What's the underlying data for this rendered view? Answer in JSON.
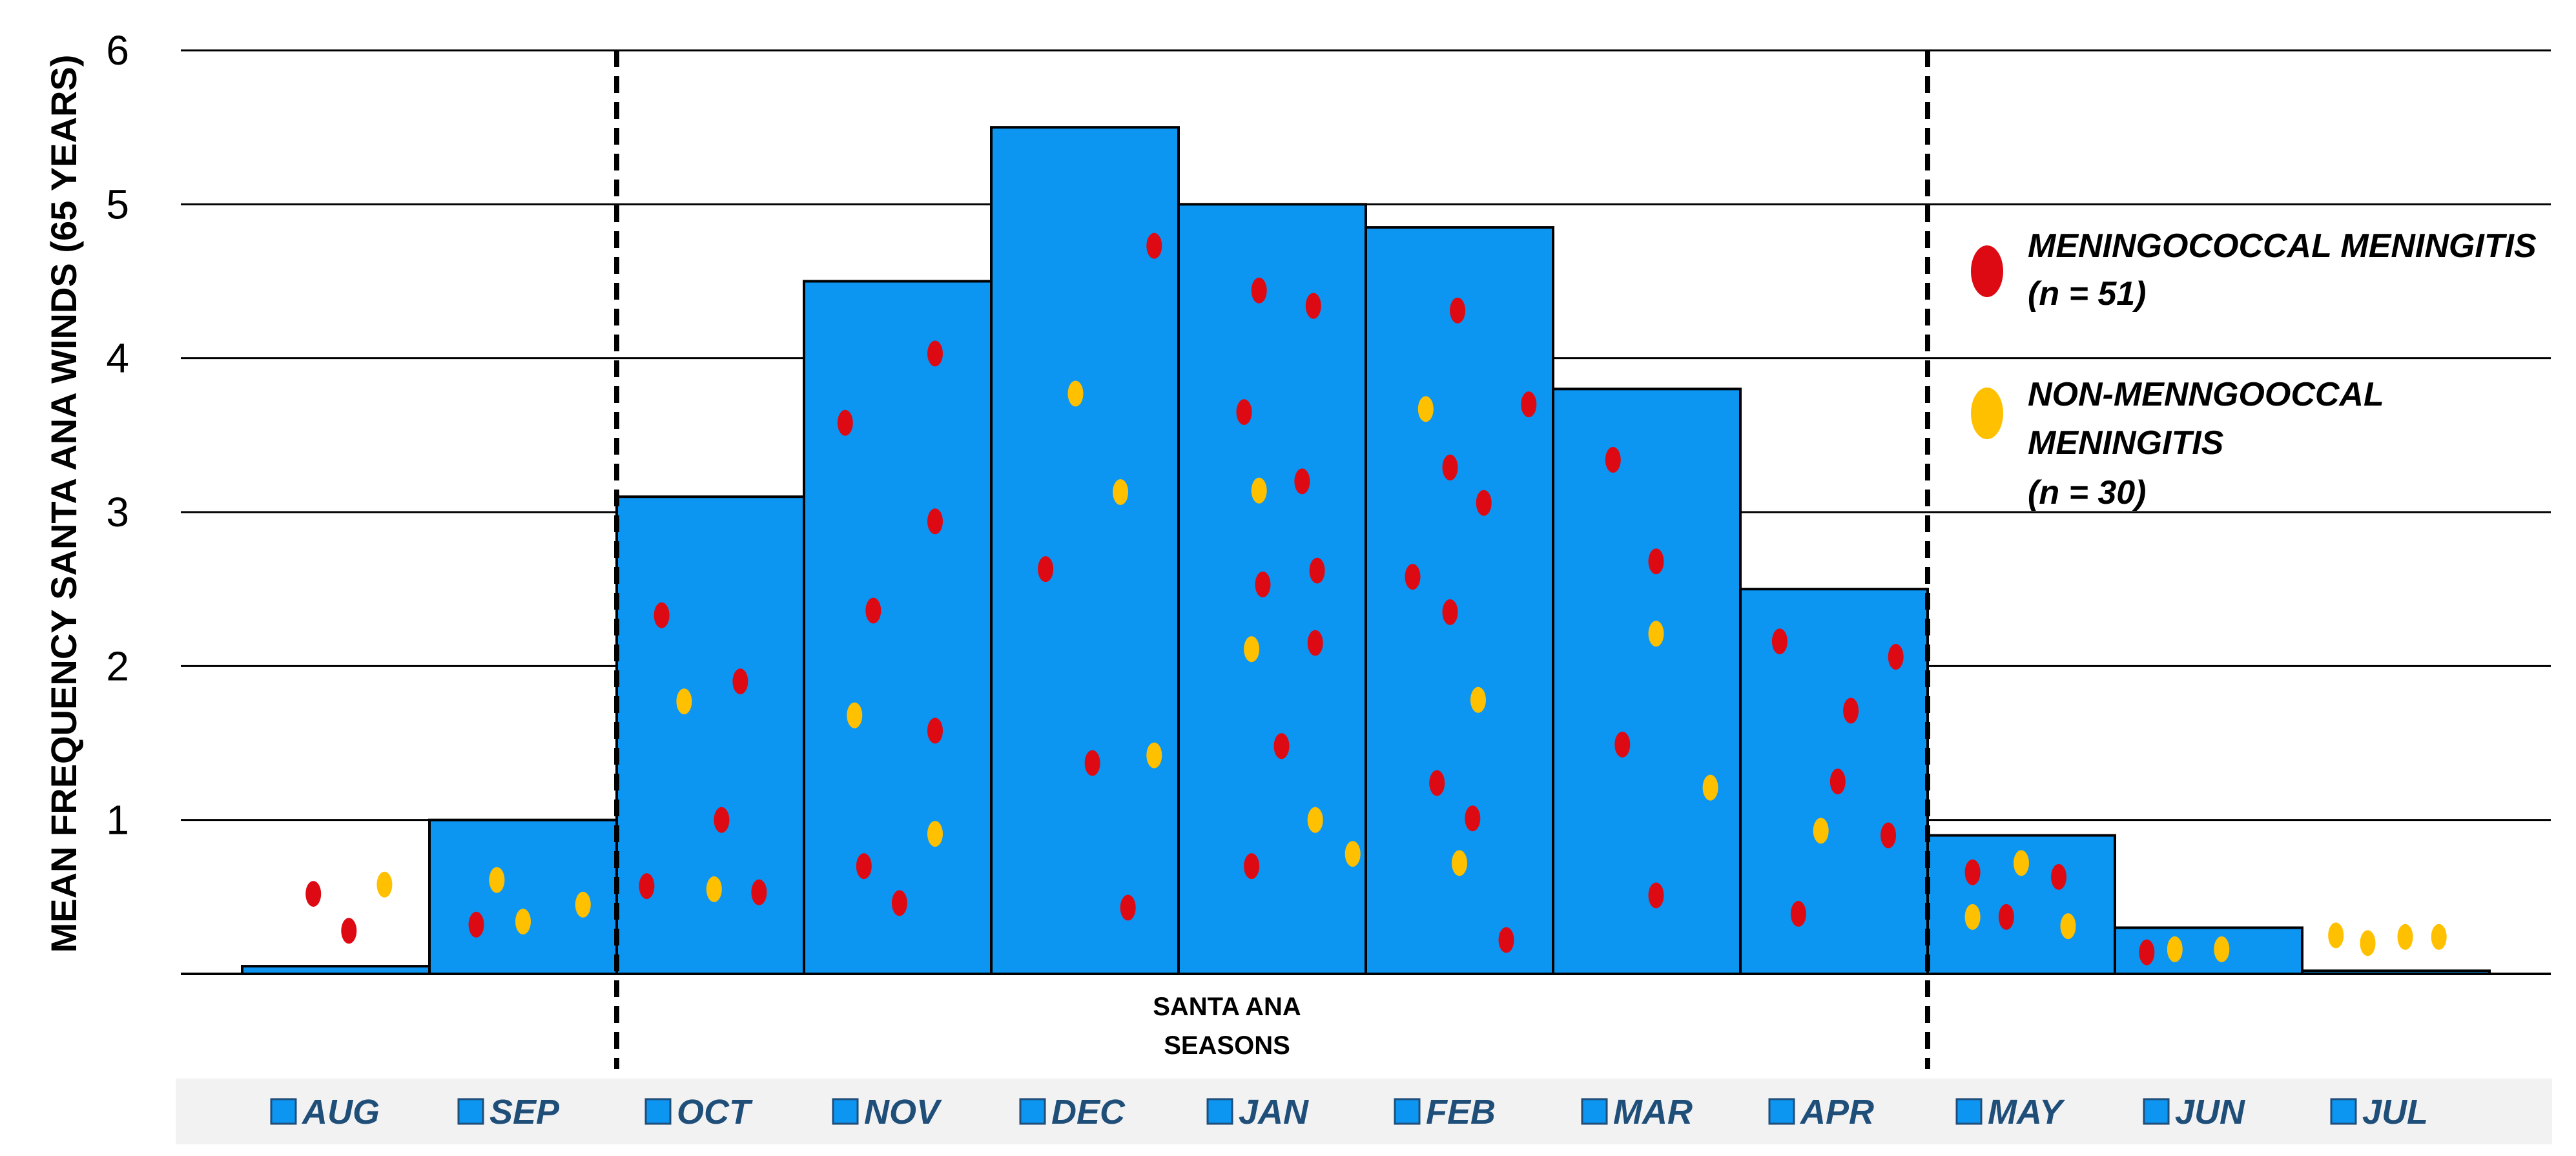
{
  "chart_data": {
    "type": "bar",
    "ylabel": "MEAN FREQUENCY SANTA ANA WINDS (65 YEARS)",
    "ylim": [
      0,
      6
    ],
    "yticks": [
      1,
      2,
      3,
      4,
      5,
      6
    ],
    "categories": [
      "AUG",
      "SEP",
      "OCT",
      "NOV",
      "DEC",
      "JAN",
      "FEB",
      "MAR",
      "APR",
      "MAY",
      "JUN",
      "JUL"
    ],
    "values": [
      0.05,
      1.0,
      3.1,
      4.5,
      5.5,
      5.0,
      4.85,
      3.8,
      2.5,
      0.9,
      0.3,
      0.02
    ],
    "bar_color": "#0d95f2",
    "season_label_line1": "SANTA ANA",
    "season_label_line2": "SEASONS",
    "season_range": [
      "OCT",
      "APR"
    ],
    "legend": [
      {
        "lines": [
          "MENINGOCOCCAL MENINGITIS",
          "(n = 51)"
        ],
        "color": "#dd0a14"
      },
      {
        "lines": [
          "NON-MENNGOOCCAL",
          "MENINGITIS",
          "(n = 30)"
        ],
        "color": "#ffc000"
      }
    ],
    "scatter": [
      {
        "type": "m",
        "month": 0,
        "offset": 0.38,
        "y": 0.52
      },
      {
        "type": "m",
        "month": 0,
        "offset": 0.57,
        "y": 0.28
      },
      {
        "type": "n",
        "month": 0,
        "offset": 0.76,
        "y": 0.58
      },
      {
        "type": "m",
        "month": 1,
        "offset": 0.25,
        "y": 0.32
      },
      {
        "type": "n",
        "month": 1,
        "offset": 0.36,
        "y": 0.61
      },
      {
        "type": "n",
        "month": 1,
        "offset": 0.5,
        "y": 0.34
      },
      {
        "type": "n",
        "month": 1,
        "offset": 0.82,
        "y": 0.45
      },
      {
        "type": "m",
        "month": 2,
        "offset": 0.16,
        "y": 0.57
      },
      {
        "type": "m",
        "month": 2,
        "offset": 0.24,
        "y": 2.33
      },
      {
        "type": "n",
        "month": 2,
        "offset": 0.36,
        "y": 1.77
      },
      {
        "type": "n",
        "month": 2,
        "offset": 0.52,
        "y": 0.55
      },
      {
        "type": "m",
        "month": 2,
        "offset": 0.56,
        "y": 1.0
      },
      {
        "type": "m",
        "month": 2,
        "offset": 0.66,
        "y": 1.9
      },
      {
        "type": "m",
        "month": 2,
        "offset": 0.76,
        "y": 0.53
      },
      {
        "type": "m",
        "month": 3,
        "offset": 0.22,
        "y": 3.58
      },
      {
        "type": "n",
        "month": 3,
        "offset": 0.27,
        "y": 1.68
      },
      {
        "type": "m",
        "month": 3,
        "offset": 0.32,
        "y": 0.7
      },
      {
        "type": "m",
        "month": 3,
        "offset": 0.37,
        "y": 2.36
      },
      {
        "type": "m",
        "month": 3,
        "offset": 0.51,
        "y": 0.46
      },
      {
        "type": "m",
        "month": 3,
        "offset": 0.7,
        "y": 4.03
      },
      {
        "type": "m",
        "month": 3,
        "offset": 0.7,
        "y": 2.94
      },
      {
        "type": "m",
        "month": 3,
        "offset": 0.7,
        "y": 1.58
      },
      {
        "type": "n",
        "month": 3,
        "offset": 0.7,
        "y": 0.91
      },
      {
        "type": "m",
        "month": 4,
        "offset": 0.29,
        "y": 2.63
      },
      {
        "type": "n",
        "month": 4,
        "offset": 0.45,
        "y": 3.77
      },
      {
        "type": "m",
        "month": 4,
        "offset": 0.54,
        "y": 1.37
      },
      {
        "type": "n",
        "month": 4,
        "offset": 0.69,
        "y": 3.13
      },
      {
        "type": "m",
        "month": 4,
        "offset": 0.73,
        "y": 0.43
      },
      {
        "type": "m",
        "month": 4,
        "offset": 0.87,
        "y": 4.73
      },
      {
        "type": "n",
        "month": 4,
        "offset": 0.87,
        "y": 1.42
      },
      {
        "type": "m",
        "month": 5,
        "offset": 0.35,
        "y": 3.65
      },
      {
        "type": "n",
        "month": 5,
        "offset": 0.39,
        "y": 2.11
      },
      {
        "type": "m",
        "month": 5,
        "offset": 0.39,
        "y": 0.7
      },
      {
        "type": "m",
        "month": 5,
        "offset": 0.43,
        "y": 4.44
      },
      {
        "type": "n",
        "month": 5,
        "offset": 0.43,
        "y": 3.14
      },
      {
        "type": "m",
        "month": 5,
        "offset": 0.45,
        "y": 2.53
      },
      {
        "type": "m",
        "month": 5,
        "offset": 0.55,
        "y": 1.48
      },
      {
        "type": "m",
        "month": 5,
        "offset": 0.66,
        "y": 3.2
      },
      {
        "type": "m",
        "month": 5,
        "offset": 0.72,
        "y": 4.34
      },
      {
        "type": "m",
        "month": 5,
        "offset": 0.73,
        "y": 2.15
      },
      {
        "type": "n",
        "month": 5,
        "offset": 0.73,
        "y": 1.0
      },
      {
        "type": "m",
        "month": 5,
        "offset": 0.74,
        "y": 2.62
      },
      {
        "type": "n",
        "month": 5,
        "offset": 0.93,
        "y": 0.78
      },
      {
        "type": "m",
        "month": 6,
        "offset": 0.25,
        "y": 2.58
      },
      {
        "type": "m",
        "month": 6,
        "offset": 0.38,
        "y": 1.24
      },
      {
        "type": "n",
        "month": 6,
        "offset": 0.32,
        "y": 3.67
      },
      {
        "type": "m",
        "month": 6,
        "offset": 0.45,
        "y": 3.29
      },
      {
        "type": "m",
        "month": 6,
        "offset": 0.45,
        "y": 2.35
      },
      {
        "type": "m",
        "month": 6,
        "offset": 0.49,
        "y": 4.31
      },
      {
        "type": "n",
        "month": 6,
        "offset": 0.5,
        "y": 0.72
      },
      {
        "type": "m",
        "month": 6,
        "offset": 0.57,
        "y": 1.01
      },
      {
        "type": "n",
        "month": 6,
        "offset": 0.6,
        "y": 1.78
      },
      {
        "type": "m",
        "month": 6,
        "offset": 0.63,
        "y": 3.06
      },
      {
        "type": "m",
        "month": 6,
        "offset": 0.75,
        "y": 0.22
      },
      {
        "type": "m",
        "month": 6,
        "offset": 0.87,
        "y": 3.7
      },
      {
        "type": "m",
        "month": 7,
        "offset": 0.32,
        "y": 3.34
      },
      {
        "type": "m",
        "month": 7,
        "offset": 0.37,
        "y": 1.49
      },
      {
        "type": "m",
        "month": 7,
        "offset": 0.55,
        "y": 0.51
      },
      {
        "type": "m",
        "month": 7,
        "offset": 0.55,
        "y": 2.68
      },
      {
        "type": "n",
        "month": 7,
        "offset": 0.55,
        "y": 2.21
      },
      {
        "type": "n",
        "month": 7,
        "offset": 0.84,
        "y": 1.21
      },
      {
        "type": "m",
        "month": 8,
        "offset": 0.31,
        "y": 0.39
      },
      {
        "type": "m",
        "month": 8,
        "offset": 0.21,
        "y": 2.16
      },
      {
        "type": "n",
        "month": 8,
        "offset": 0.43,
        "y": 0.93
      },
      {
        "type": "m",
        "month": 8,
        "offset": 0.52,
        "y": 1.25
      },
      {
        "type": "m",
        "month": 8,
        "offset": 0.59,
        "y": 1.71
      },
      {
        "type": "m",
        "month": 8,
        "offset": 0.79,
        "y": 0.9
      },
      {
        "type": "m",
        "month": 8,
        "offset": 0.83,
        "y": 2.06
      },
      {
        "type": "m",
        "month": 9,
        "offset": 0.24,
        "y": 0.66
      },
      {
        "type": "n",
        "month": 9,
        "offset": 0.24,
        "y": 0.37
      },
      {
        "type": "m",
        "month": 9,
        "offset": 0.42,
        "y": 0.37
      },
      {
        "type": "n",
        "month": 9,
        "offset": 0.5,
        "y": 0.72
      },
      {
        "type": "m",
        "month": 9,
        "offset": 0.7,
        "y": 0.63
      },
      {
        "type": "n",
        "month": 9,
        "offset": 0.75,
        "y": 0.31
      },
      {
        "type": "m",
        "month": 10,
        "offset": 0.17,
        "y": 0.14
      },
      {
        "type": "n",
        "month": 10,
        "offset": 0.32,
        "y": 0.16
      },
      {
        "type": "n",
        "month": 10,
        "offset": 0.57,
        "y": 0.16
      },
      {
        "type": "n",
        "month": 11,
        "offset": 0.18,
        "y": 0.25
      },
      {
        "type": "n",
        "month": 11,
        "offset": 0.35,
        "y": 0.2
      },
      {
        "type": "n",
        "month": 11,
        "offset": 0.55,
        "y": 0.24
      },
      {
        "type": "n",
        "month": 11,
        "offset": 0.73,
        "y": 0.24
      }
    ]
  }
}
